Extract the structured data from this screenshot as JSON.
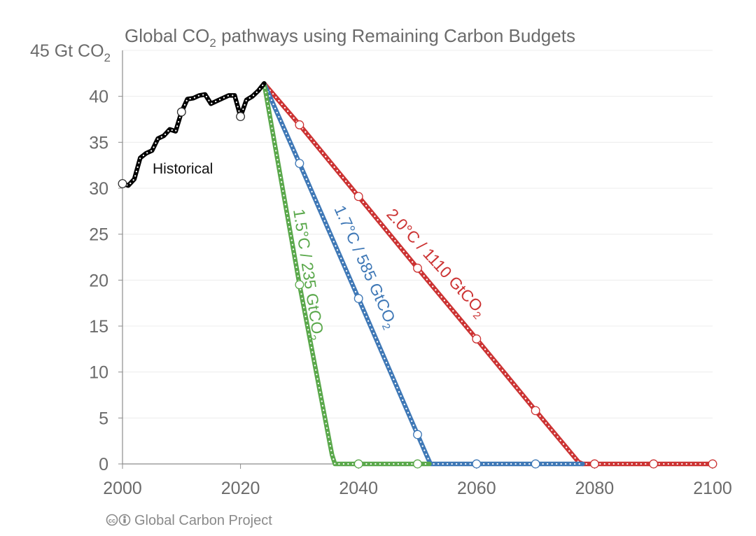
{
  "chart_data": {
    "type": "line",
    "title_parts": [
      "Global CO",
      "2",
      " pathways using Remaining Carbon Budgets"
    ],
    "ylabel_parts": [
      "45 Gt CO",
      "2"
    ],
    "xlim": [
      2000,
      2100
    ],
    "ylim": [
      0,
      45
    ],
    "x_ticks": [
      2000,
      2020,
      2040,
      2060,
      2080,
      2100
    ],
    "y_ticks": [
      0,
      5,
      10,
      15,
      20,
      25,
      30,
      35,
      40
    ],
    "grid": true,
    "series": [
      {
        "name": "Historical",
        "label_parts": [
          "Historical"
        ],
        "color": "#000000",
        "x": [
          2000,
          2001,
          2002,
          2003,
          2004,
          2005,
          2006,
          2007,
          2008,
          2009,
          2010,
          2011,
          2012,
          2013,
          2014,
          2015,
          2016,
          2017,
          2018,
          2019,
          2020,
          2021,
          2022,
          2023,
          2024
        ],
        "y": [
          30.5,
          30.3,
          31.0,
          33.3,
          33.8,
          34.1,
          35.4,
          35.7,
          36.4,
          36.2,
          38.3,
          39.7,
          39.8,
          40.1,
          40.2,
          39.2,
          39.5,
          39.8,
          40.1,
          40.1,
          37.8,
          39.6,
          40.0,
          40.6,
          41.4
        ],
        "markers": [
          2000,
          2010,
          2020
        ]
      },
      {
        "name": "1.5°C / 235 GtCO2",
        "label_parts": [
          "1.5°C / 235 GtCO",
          "2"
        ],
        "color": "#5aa84b",
        "x": [
          2024,
          2030,
          2035.5,
          2036,
          2040,
          2050,
          2052
        ],
        "y": [
          41.4,
          19.5,
          1.0,
          0,
          0,
          0,
          0
        ],
        "markers": [
          2030,
          2040,
          2050
        ]
      },
      {
        "name": "1.7°C / 585 GtCO2",
        "label_parts": [
          "1.7°C / 585 GtCO",
          "2"
        ],
        "color": "#3f78b6",
        "x": [
          2024,
          2030,
          2040,
          2050,
          2051.5,
          2052.2,
          2060,
          2070,
          2078
        ],
        "y": [
          41.4,
          32.7,
          18.0,
          3.2,
          1.0,
          0,
          0,
          0,
          0
        ],
        "markers": [
          2030,
          2040,
          2050,
          2060,
          2070
        ]
      },
      {
        "name": "2.0°C / 1110 GtCO2",
        "label_parts": [
          "2.0°C / 1110 GtCO",
          "2"
        ],
        "color": "#cc3333",
        "x": [
          2024,
          2030,
          2040,
          2050,
          2060,
          2070,
          2077.3,
          2078,
          2080,
          2090,
          2100
        ],
        "y": [
          41.4,
          36.9,
          29.1,
          21.3,
          13.6,
          5.8,
          0.2,
          0,
          0,
          0,
          0
        ],
        "markers": [
          2030,
          2040,
          2050,
          2060,
          2070,
          2080,
          2090,
          2100
        ]
      }
    ]
  },
  "footer": {
    "credit": "Global Carbon Project",
    "cc_icon": "creative-commons-icon",
    "by_icon": "attribution-icon"
  }
}
